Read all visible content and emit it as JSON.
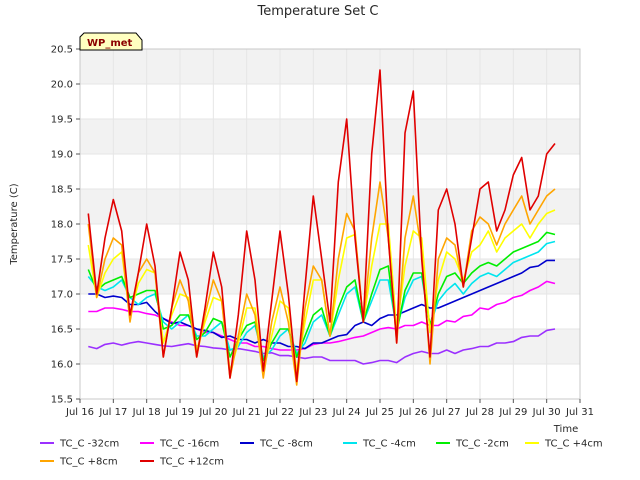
{
  "chart_data": {
    "type": "line",
    "title": "Temperature Set C",
    "xlabel": "Time",
    "ylabel": "Temperature (C)",
    "xlim": [
      16,
      31
    ],
    "ylim": [
      15.5,
      20.5
    ],
    "xticks": [
      16,
      17,
      18,
      19,
      20,
      21,
      22,
      23,
      24,
      25,
      26,
      27,
      28,
      29,
      30,
      31
    ],
    "xtick_labels": [
      "Jul 16",
      "Jul 17",
      "Jul 18",
      "Jul 19",
      "Jul 20",
      "Jul 21",
      "Jul 22",
      "Jul 23",
      "Jul 24",
      "Jul 25",
      "Jul 26",
      "Jul 27",
      "Jul 28",
      "Jul 29",
      "Jul 30",
      "Jul 31"
    ],
    "yticks": [
      15.5,
      16.0,
      16.5,
      17.0,
      17.5,
      18.0,
      18.5,
      19.0,
      19.5,
      20.0,
      20.5
    ],
    "ytick_labels": [
      "15.5",
      "16.0",
      "16.5",
      "17.0",
      "17.5",
      "18.0",
      "18.5",
      "19.0",
      "19.5",
      "20.0",
      "20.5"
    ],
    "grid": true,
    "band_colors": [
      "#f2f2f2",
      "#ffffff"
    ],
    "annotation": "WP_met",
    "x": [
      16.25,
      16.5,
      16.75,
      17.0,
      17.25,
      17.5,
      17.75,
      18.0,
      18.25,
      18.5,
      18.75,
      19.0,
      19.25,
      19.5,
      19.75,
      20.0,
      20.25,
      20.5,
      20.75,
      21.0,
      21.25,
      21.5,
      21.75,
      22.0,
      22.25,
      22.5,
      22.75,
      23.0,
      23.25,
      23.5,
      23.75,
      24.0,
      24.25,
      24.5,
      24.75,
      25.0,
      25.25,
      25.5,
      25.75,
      26.0,
      26.25,
      26.5,
      26.75,
      27.0,
      27.25,
      27.5,
      27.75,
      28.0,
      28.25,
      28.5,
      28.75,
      29.0,
      29.25,
      29.5,
      29.75,
      30.0,
      30.25
    ],
    "series": [
      {
        "name": "TC_C -32cm",
        "color": "#9b30ff",
        "values": [
          16.25,
          16.22,
          16.28,
          16.3,
          16.27,
          16.3,
          16.32,
          16.3,
          16.28,
          16.26,
          16.25,
          16.27,
          16.29,
          16.26,
          16.25,
          16.23,
          16.22,
          16.2,
          16.22,
          16.2,
          16.18,
          16.15,
          16.16,
          16.12,
          16.12,
          16.1,
          16.08,
          16.1,
          16.1,
          16.05,
          16.05,
          16.05,
          16.05,
          16.0,
          16.02,
          16.05,
          16.05,
          16.02,
          16.1,
          16.15,
          16.18,
          16.15,
          16.15,
          16.2,
          16.15,
          16.2,
          16.22,
          16.25,
          16.25,
          16.3,
          16.3,
          16.32,
          16.38,
          16.4,
          16.4,
          16.48,
          16.5
        ]
      },
      {
        "name": "TC_C -16cm",
        "color": "#ff00ff",
        "values": [
          16.75,
          16.75,
          16.8,
          16.8,
          16.78,
          16.75,
          16.75,
          16.72,
          16.7,
          16.65,
          16.6,
          16.55,
          16.55,
          16.5,
          16.45,
          16.45,
          16.4,
          16.35,
          16.3,
          16.3,
          16.25,
          16.25,
          16.22,
          16.2,
          16.2,
          16.2,
          16.22,
          16.28,
          16.3,
          16.3,
          16.32,
          16.35,
          16.38,
          16.4,
          16.45,
          16.5,
          16.52,
          16.5,
          16.55,
          16.55,
          16.6,
          16.55,
          16.55,
          16.62,
          16.6,
          16.68,
          16.7,
          16.8,
          16.78,
          16.85,
          16.88,
          16.95,
          16.98,
          17.05,
          17.1,
          17.18,
          17.15
        ]
      },
      {
        "name": "TC_C -8cm",
        "color": "#0000cd",
        "values": [
          17.0,
          17.0,
          16.95,
          16.97,
          16.95,
          16.85,
          16.85,
          16.88,
          16.75,
          16.65,
          16.58,
          16.6,
          16.55,
          16.5,
          16.48,
          16.45,
          16.38,
          16.4,
          16.35,
          16.35,
          16.3,
          16.35,
          16.3,
          16.3,
          16.25,
          16.25,
          16.22,
          16.3,
          16.3,
          16.35,
          16.4,
          16.42,
          16.55,
          16.6,
          16.55,
          16.65,
          16.7,
          16.7,
          16.75,
          16.8,
          16.85,
          16.8,
          16.8,
          16.85,
          16.9,
          16.95,
          17.0,
          17.05,
          17.1,
          17.15,
          17.2,
          17.25,
          17.3,
          17.38,
          17.4,
          17.48,
          17.48
        ]
      },
      {
        "name": "TC_C -4cm",
        "color": "#00e5ee",
        "values": [
          17.25,
          17.1,
          17.05,
          17.1,
          17.2,
          16.95,
          16.85,
          16.95,
          17.0,
          16.6,
          16.5,
          16.6,
          16.7,
          16.4,
          16.4,
          16.5,
          16.6,
          16.2,
          16.25,
          16.45,
          16.55,
          16.1,
          16.2,
          16.4,
          16.5,
          16.15,
          16.3,
          16.6,
          16.7,
          16.4,
          16.7,
          17.0,
          17.1,
          16.6,
          16.9,
          17.2,
          17.2,
          16.5,
          16.95,
          17.2,
          17.25,
          16.55,
          16.9,
          17.05,
          17.15,
          17.0,
          17.15,
          17.25,
          17.3,
          17.25,
          17.35,
          17.45,
          17.5,
          17.55,
          17.6,
          17.72,
          17.75
        ]
      },
      {
        "name": "TC_C -2cm",
        "color": "#00ee00",
        "values": [
          17.35,
          17.05,
          17.15,
          17.2,
          17.25,
          16.95,
          17.0,
          17.05,
          17.05,
          16.5,
          16.55,
          16.7,
          16.7,
          16.35,
          16.45,
          16.65,
          16.6,
          16.1,
          16.35,
          16.55,
          16.6,
          16.05,
          16.3,
          16.5,
          16.5,
          16.1,
          16.4,
          16.7,
          16.8,
          16.4,
          16.8,
          17.1,
          17.2,
          16.6,
          17.0,
          17.35,
          17.4,
          16.45,
          17.05,
          17.3,
          17.3,
          16.55,
          17.0,
          17.25,
          17.3,
          17.15,
          17.3,
          17.4,
          17.45,
          17.4,
          17.5,
          17.6,
          17.65,
          17.7,
          17.75,
          17.88,
          17.85
        ]
      },
      {
        "name": "TC_C +4cm",
        "color": "#ffff00",
        "values": [
          17.7,
          16.95,
          17.3,
          17.5,
          17.6,
          16.7,
          17.15,
          17.35,
          17.3,
          16.3,
          16.7,
          17.0,
          16.95,
          16.2,
          16.6,
          16.95,
          16.9,
          15.9,
          16.3,
          16.8,
          16.8,
          15.9,
          16.4,
          16.9,
          16.8,
          15.9,
          16.6,
          17.2,
          17.2,
          16.4,
          17.2,
          17.8,
          17.85,
          16.6,
          17.4,
          18.0,
          18.0,
          16.5,
          17.4,
          17.9,
          17.8,
          16.45,
          17.2,
          17.6,
          17.5,
          17.2,
          17.6,
          17.7,
          17.9,
          17.6,
          17.8,
          17.9,
          18.0,
          17.8,
          18.0,
          18.15,
          18.2
        ]
      },
      {
        "name": "TC_C +8cm",
        "color": "#ffa500",
        "values": [
          18.0,
          16.95,
          17.5,
          17.8,
          17.7,
          16.6,
          17.3,
          17.5,
          17.3,
          16.1,
          16.8,
          17.2,
          16.9,
          16.1,
          16.7,
          17.2,
          16.9,
          15.8,
          16.4,
          17.0,
          16.7,
          15.8,
          16.6,
          17.1,
          16.6,
          15.7,
          16.8,
          17.4,
          17.2,
          16.4,
          17.5,
          18.15,
          17.9,
          16.6,
          17.8,
          18.6,
          17.8,
          16.3,
          17.8,
          18.4,
          17.6,
          16.0,
          17.5,
          17.8,
          17.7,
          17.1,
          17.9,
          18.1,
          18.0,
          17.7,
          18.0,
          18.2,
          18.4,
          18.0,
          18.2,
          18.4,
          18.5
        ]
      },
      {
        "name": "TC_C +12cm",
        "color": "#e00000",
        "values": [
          18.15,
          17.0,
          17.8,
          18.35,
          17.9,
          16.7,
          17.3,
          18.0,
          17.4,
          16.1,
          16.8,
          17.6,
          17.2,
          16.1,
          16.8,
          17.6,
          17.1,
          15.8,
          16.7,
          17.9,
          17.2,
          15.9,
          16.9,
          17.9,
          17.0,
          15.75,
          17.1,
          18.4,
          17.5,
          16.6,
          18.6,
          19.5,
          17.8,
          16.6,
          19.0,
          20.2,
          17.8,
          16.3,
          19.3,
          19.9,
          17.5,
          16.1,
          18.2,
          18.5,
          18.0,
          17.1,
          17.8,
          18.5,
          18.6,
          17.9,
          18.2,
          18.7,
          18.95,
          18.2,
          18.4,
          19.0,
          19.15
        ]
      }
    ],
    "legend": {
      "position": "bottom",
      "columns": 6
    }
  }
}
